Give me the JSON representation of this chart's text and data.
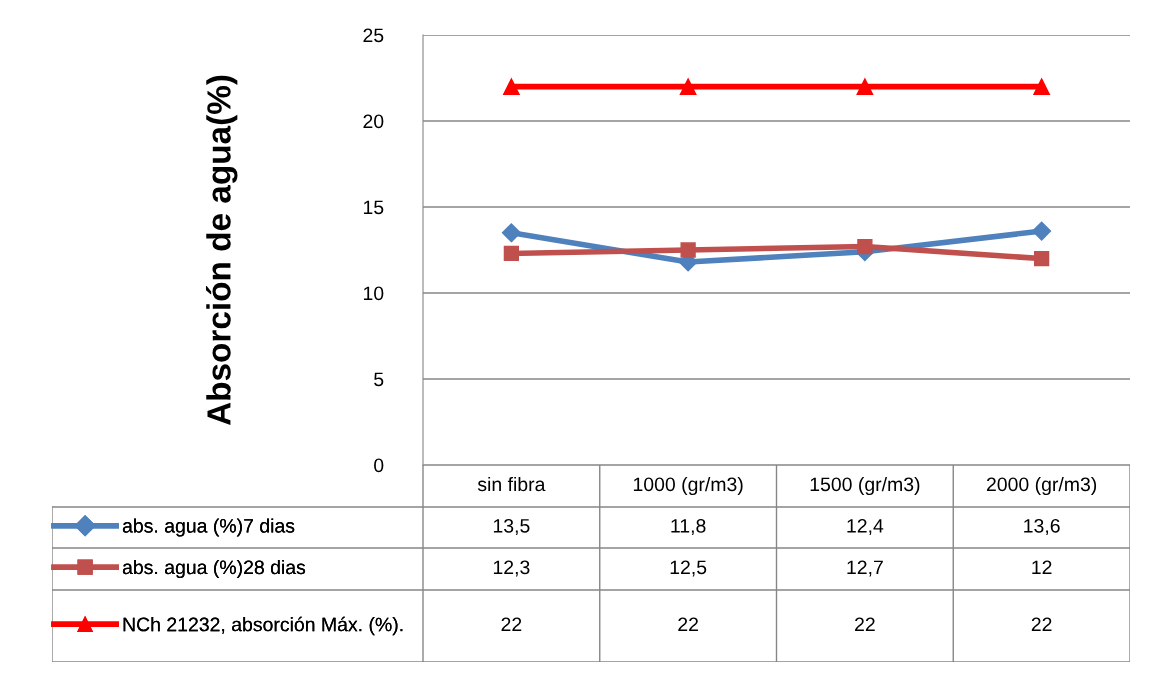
{
  "chart_data": {
    "type": "line",
    "ylabel": "Absorción de agua(%)",
    "categories": [
      "sin fibra",
      "1000 (gr/m3)",
      "1500 (gr/m3)",
      "2000 (gr/m3)"
    ],
    "legend": "bottom",
    "ylim": [
      0,
      25
    ],
    "yticks": [
      0,
      5,
      10,
      15,
      20,
      25
    ],
    "grid": "y",
    "series": [
      {
        "name": "abs. agua (%)7 dias",
        "color": "#4f81bd",
        "marker": "diamond",
        "values": [
          13.5,
          11.8,
          12.4,
          13.6
        ],
        "value_labels": [
          "13,5",
          "11,8",
          "12,4",
          "13,6"
        ]
      },
      {
        "name": "abs. agua (%)28 dias",
        "color": "#c0504d",
        "marker": "square",
        "values": [
          12.3,
          12.5,
          12.7,
          12
        ],
        "value_labels": [
          "12,3",
          "12,5",
          "12,7",
          "12"
        ]
      },
      {
        "name": "NCh 21232, absorción Máx. (%).",
        "color": "#ff0000",
        "marker": "triangle",
        "values": [
          22,
          22,
          22,
          22
        ],
        "value_labels": [
          "22",
          "22",
          "22",
          "22"
        ]
      }
    ]
  }
}
